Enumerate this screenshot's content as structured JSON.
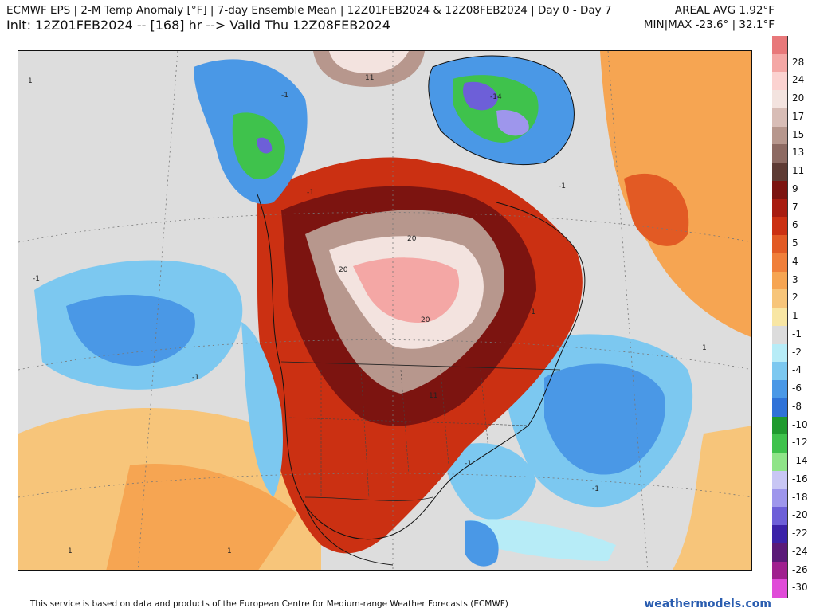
{
  "header": {
    "title": "ECMWF EPS | 2-M Temp Anomaly [°F] | 7-day Ensemble Mean | 12Z01FEB2024 & 12Z08FEB2024 | Day 0 - Day 7",
    "init": "Init: 12Z01FEB2024 -- [168] hr --> Valid Thu 12Z08FEB2024",
    "areal_avg": "AREAL AVG 1.92°F",
    "minmax": "MIN|MAX -23.6° | 32.1°F"
  },
  "colorbar": {
    "items": [
      {
        "label": "",
        "color": "#e8787a"
      },
      {
        "label": "28",
        "color": "#f4a7a5"
      },
      {
        "label": "24",
        "color": "#fbd2d0"
      },
      {
        "label": "20",
        "color": "#f3e3df"
      },
      {
        "label": "17",
        "color": "#d8bdb6"
      },
      {
        "label": "15",
        "color": "#b7978d"
      },
      {
        "label": "13",
        "color": "#8d6a62"
      },
      {
        "label": "11",
        "color": "#5e3b34"
      },
      {
        "label": "9",
        "color": "#7c1410"
      },
      {
        "label": "7",
        "color": "#a81c10"
      },
      {
        "label": "6",
        "color": "#cb3012"
      },
      {
        "label": "5",
        "color": "#e25a24"
      },
      {
        "label": "4",
        "color": "#f07f3a"
      },
      {
        "label": "3",
        "color": "#f6a552"
      },
      {
        "label": "2",
        "color": "#f7c57a"
      },
      {
        "label": "1",
        "color": "#f8e6a4"
      },
      {
        "label": "-1",
        "color": "#dcdcdc"
      },
      {
        "label": "-2",
        "color": "#b7ecf7"
      },
      {
        "label": "-4",
        "color": "#7cc8f0"
      },
      {
        "label": "-6",
        "color": "#4a98e6"
      },
      {
        "label": "-8",
        "color": "#2f72d8"
      },
      {
        "label": "-10",
        "color": "#1f9a2e"
      },
      {
        "label": "-12",
        "color": "#3fc24c"
      },
      {
        "label": "-14",
        "color": "#8fe488"
      },
      {
        "label": "-16",
        "color": "#c8c6f4"
      },
      {
        "label": "-18",
        "color": "#9e96ec"
      },
      {
        "label": "-20",
        "color": "#6d5fd8"
      },
      {
        "label": "-22",
        "color": "#3b22a8"
      },
      {
        "label": "-24",
        "color": "#5b1a78"
      },
      {
        "label": "-26",
        "color": "#a0208f"
      },
      {
        "label": "-30",
        "color": "#e04bd8"
      }
    ]
  },
  "map": {
    "contour_labels": [
      {
        "text": "1"
      },
      {
        "text": "-1"
      },
      {
        "text": "-1"
      },
      {
        "text": "-1"
      },
      {
        "text": "-1"
      },
      {
        "text": "-14"
      },
      {
        "text": "20"
      },
      {
        "text": "20"
      },
      {
        "text": "20"
      },
      {
        "text": "11"
      },
      {
        "text": "11"
      },
      {
        "text": "-1"
      },
      {
        "text": "-1"
      },
      {
        "text": "1"
      },
      {
        "text": "1"
      },
      {
        "text": "-1"
      },
      {
        "text": "-1"
      },
      {
        "text": "1"
      }
    ]
  },
  "footer": {
    "credit": "This service is based on data and products of the European Centre for Medium-range Weather Forecasts (ECMWF)",
    "site": "weathermodels.com"
  }
}
